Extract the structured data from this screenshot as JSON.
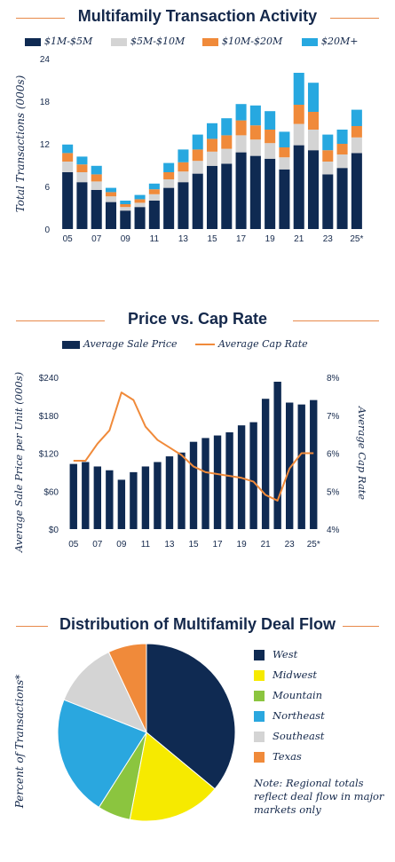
{
  "chart_data": [
    {
      "type": "bar",
      "stacked": true,
      "title": "Multifamily Transaction Activity",
      "ylabel": "Total Transactions (000s)",
      "xlabel": "",
      "ylim": [
        0,
        24
      ],
      "yticks": [
        "0",
        "6",
        "12",
        "18",
        "24"
      ],
      "categories": [
        "05",
        "06",
        "07",
        "08",
        "09",
        "10",
        "11",
        "12",
        "13",
        "14",
        "15",
        "16",
        "17",
        "18",
        "19",
        "20",
        "21",
        "22",
        "23",
        "24",
        "25*"
      ],
      "xtick_labels": [
        "05",
        "07",
        "09",
        "11",
        "13",
        "15",
        "17",
        "19",
        "21",
        "23",
        "25*"
      ],
      "grid": false,
      "legend": "top",
      "series": [
        {
          "name": "$1M-$5M",
          "color": "#0f2a52",
          "values": [
            8.0,
            6.6,
            5.5,
            3.8,
            2.6,
            3.1,
            4.0,
            5.8,
            6.6,
            7.8,
            8.9,
            9.2,
            10.8,
            10.3,
            9.9,
            8.4,
            11.8,
            11.1,
            7.7,
            8.6,
            10.7
          ]
        },
        {
          "name": "$5M-$10M",
          "color": "#d4d4d4",
          "values": [
            1.5,
            1.4,
            1.2,
            0.8,
            0.5,
            0.6,
            0.9,
            1.2,
            1.5,
            1.8,
            2.0,
            2.1,
            2.4,
            2.3,
            2.2,
            1.7,
            3.0,
            2.9,
            1.8,
            1.9,
            2.2
          ]
        },
        {
          "name": "$10M-$20M",
          "color": "#f08a3a",
          "values": [
            1.2,
            1.1,
            1.0,
            0.6,
            0.4,
            0.5,
            0.7,
            1.0,
            1.3,
            1.6,
            1.8,
            1.9,
            2.1,
            2.0,
            1.9,
            1.4,
            2.7,
            2.5,
            1.6,
            1.5,
            1.6
          ]
        },
        {
          "name": "$20M+",
          "color": "#27a8e0",
          "values": [
            1.2,
            1.1,
            1.2,
            0.6,
            0.5,
            0.6,
            0.8,
            1.3,
            1.8,
            2.1,
            2.2,
            2.4,
            2.3,
            2.8,
            2.6,
            2.2,
            4.5,
            4.1,
            2.2,
            2.0,
            2.3
          ]
        }
      ]
    },
    {
      "type": "bar+line",
      "title": "Price vs. Cap Rate",
      "categories": [
        "05",
        "06",
        "07",
        "08",
        "09",
        "10",
        "11",
        "12",
        "13",
        "14",
        "15",
        "16",
        "17",
        "18",
        "19",
        "20",
        "21",
        "22",
        "23",
        "24",
        "25*"
      ],
      "xtick_labels": [
        "05",
        "07",
        "09",
        "11",
        "13",
        "15",
        "17",
        "19",
        "21",
        "23",
        "25*"
      ],
      "ylabel": "Average Sale Price per Unit (000s)",
      "y2label": "Average Cap Rate",
      "ylim": [
        0,
        240
      ],
      "y2lim": [
        4,
        8
      ],
      "yticks": [
        "$0",
        "$60",
        "$120",
        "$180",
        "$240"
      ],
      "y2ticks": [
        "4%",
        "5%",
        "6%",
        "7%",
        "8%"
      ],
      "grid": false,
      "legend": "top",
      "series": [
        {
          "name": "Average Sale Price",
          "type": "bar",
          "color": "#0f2a52",
          "values": [
            103,
            106,
            99,
            93,
            78,
            90,
            99,
            106,
            115,
            121,
            138,
            144,
            148,
            153,
            164,
            169,
            206,
            233,
            200,
            197,
            204
          ]
        },
        {
          "name": "Average Cap Rate",
          "type": "line",
          "color": "#f08a3a",
          "values": [
            5.8,
            5.8,
            6.25,
            6.6,
            7.6,
            7.4,
            6.7,
            6.35,
            6.15,
            5.95,
            5.65,
            5.5,
            5.45,
            5.4,
            5.35,
            5.25,
            4.9,
            4.75,
            5.6,
            6.0,
            6.0
          ]
        }
      ]
    },
    {
      "type": "pie",
      "title": "Distribution of Multifamily Deal Flow",
      "ylabel": "Percent of Transactions*",
      "legend": "right",
      "slices": [
        {
          "name": "West",
          "color": "#0f2a52",
          "value": 36
        },
        {
          "name": "Midwest",
          "color": "#f6ea00",
          "value": 17
        },
        {
          "name": "Mountain",
          "color": "#8bc53f",
          "value": 6
        },
        {
          "name": "Northeast",
          "color": "#2aa7df",
          "value": 22
        },
        {
          "name": "Southeast",
          "color": "#d4d4d4",
          "value": 12
        },
        {
          "name": "Texas",
          "color": "#f08a3a",
          "value": 7
        }
      ],
      "note": "Note: Regional totals reflect deal flow in major markets only"
    }
  ]
}
